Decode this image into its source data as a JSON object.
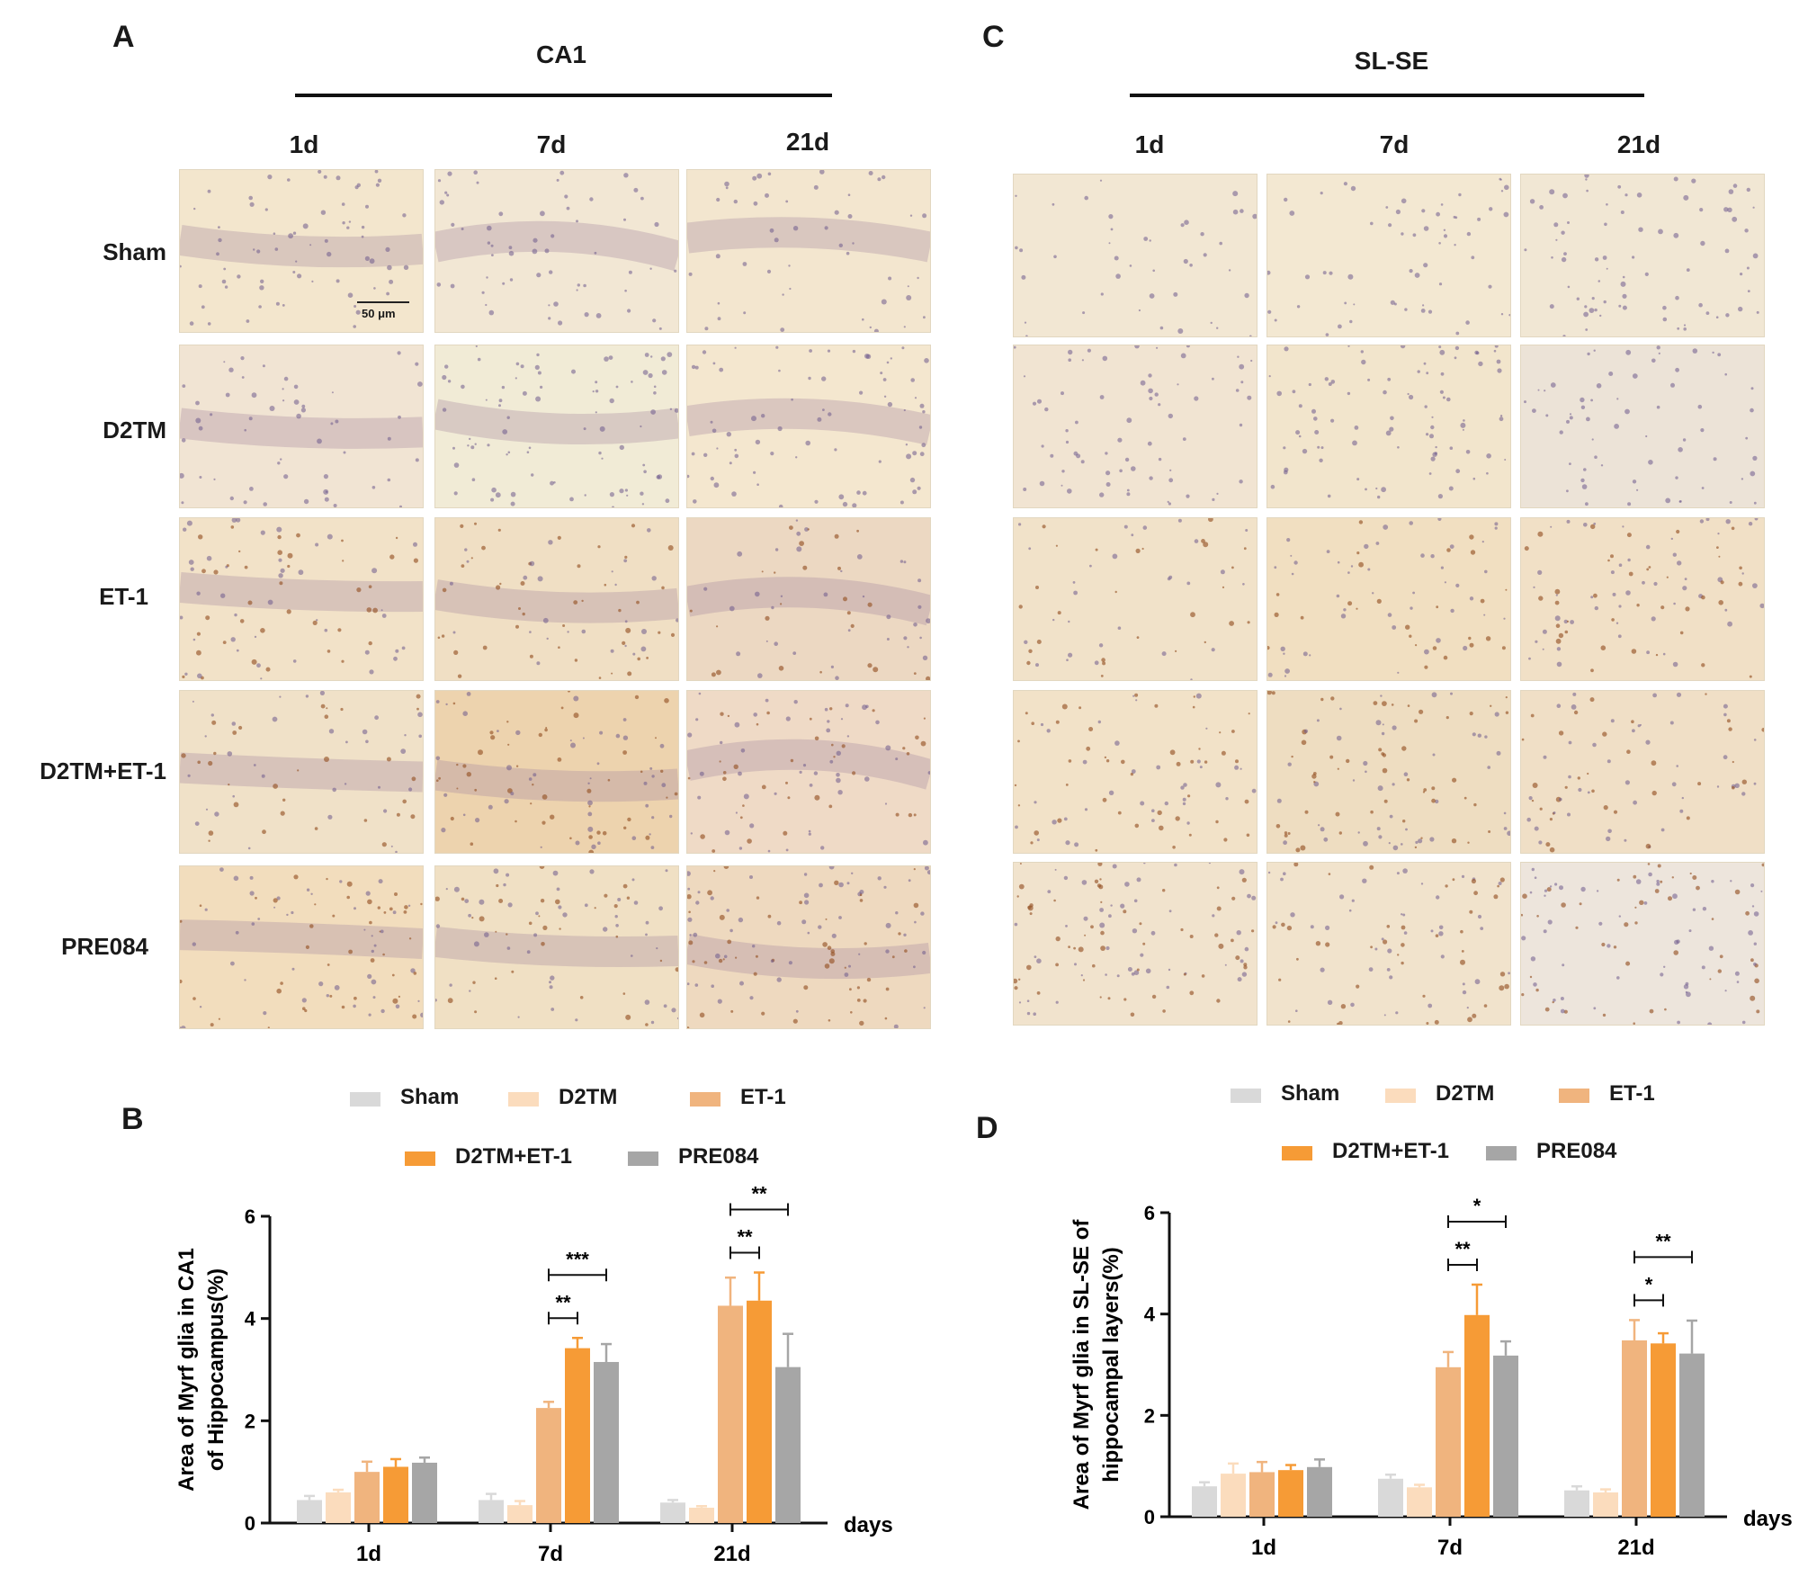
{
  "panel_labels": {
    "A": "A",
    "B": "B",
    "C": "C",
    "D": "D"
  },
  "micrographs": {
    "left": {
      "title": "CA1",
      "columns": [
        "1d",
        "7d",
        "21d"
      ]
    },
    "right": {
      "title": "SL-SE",
      "columns": [
        "1d",
        "7d",
        "21d"
      ]
    },
    "rows": [
      "Sham",
      "D2TM",
      "ET-1",
      "D2TM+ET-1",
      "PRE084"
    ],
    "scale_bar": "50 μm",
    "tile_tints": {
      "left": [
        [
          "#f3e6cd",
          "#f2e7d4",
          "#f3e6cf"
        ],
        [
          "#f1e4d3",
          "#f1ebd6",
          "#f4e7cf"
        ],
        [
          "#f2e2c8",
          "#f0dfc4",
          "#ecd8c2"
        ],
        [
          "#f0e1c8",
          "#edd3ae",
          "#efdac6"
        ],
        [
          "#f2ddbd",
          "#f0e0c4",
          "#eed9bf"
        ]
      ],
      "right": [
        [
          "#f2e7d3",
          "#f3e8d2",
          "#f1e7d4"
        ],
        [
          "#f1e4d2",
          "#f2e5cc",
          "#ece3d7"
        ],
        [
          "#f1e2c9",
          "#f1dfc1",
          "#f1e0c6"
        ],
        [
          "#f2e2c8",
          "#eeddc1",
          "#f0dfc6"
        ],
        [
          "#f1e3cd",
          "#f1e3cc",
          "#ede5dc"
        ]
      ]
    }
  },
  "chart_data": [
    {
      "type": "bar",
      "panel": "B",
      "title": "",
      "ylabel_line1": "Area of Myrf glia in  CA1",
      "ylabel_line2": "of Hippocampus(%)",
      "xlabel": "days",
      "ylim": [
        0,
        6
      ],
      "yticks": [
        0,
        2,
        4,
        6
      ],
      "categories": [
        "1d",
        "7d",
        "21d"
      ],
      "series": [
        {
          "name": "Sham",
          "color": "#d9d9d9",
          "values": [
            0.45,
            0.45,
            0.4
          ],
          "errors": [
            0.08,
            0.12,
            0.05
          ]
        },
        {
          "name": "D2TM",
          "color": "#fbdcbd",
          "values": [
            0.6,
            0.35,
            0.3
          ],
          "errors": [
            0.05,
            0.08,
            0.03
          ]
        },
        {
          "name": "ET-1",
          "color": "#f0b47e",
          "values": [
            1.0,
            2.25,
            4.25
          ],
          "errors": [
            0.2,
            0.12,
            0.55
          ]
        },
        {
          "name": "D2TM+ET-1",
          "color": "#f69b36",
          "values": [
            1.1,
            3.42,
            4.35
          ],
          "errors": [
            0.15,
            0.2,
            0.55
          ]
        },
        {
          "name": "PRE084",
          "color": "#a6a6a6",
          "values": [
            1.18,
            3.15,
            3.05
          ],
          "errors": [
            0.1,
            0.35,
            0.65
          ]
        }
      ],
      "significance": [
        {
          "category": "7d",
          "from_series": 2,
          "to_series": 3,
          "level": 1,
          "label": "**"
        },
        {
          "category": "7d",
          "from_series": 2,
          "to_series": 4,
          "level": 2,
          "label": "***"
        },
        {
          "category": "21d",
          "from_series": 2,
          "to_series": 3,
          "level": 1,
          "label": "**"
        },
        {
          "category": "21d",
          "from_series": 2,
          "to_series": 4,
          "level": 2,
          "label": "**"
        }
      ]
    },
    {
      "type": "bar",
      "panel": "D",
      "title": "",
      "ylabel_line1": "Area of Myrf glia in  SL-SE of",
      "ylabel_line2": "hippocampal layers(%)",
      "xlabel": "days",
      "ylim": [
        0,
        6
      ],
      "yticks": [
        0,
        2,
        4,
        6
      ],
      "categories": [
        "1d",
        "7d",
        "21d"
      ],
      "series": [
        {
          "name": "Sham",
          "color": "#d9d9d9",
          "values": [
            0.6,
            0.75,
            0.52
          ],
          "errors": [
            0.08,
            0.08,
            0.08
          ]
        },
        {
          "name": "D2TM",
          "color": "#fbdcbd",
          "values": [
            0.85,
            0.58,
            0.48
          ],
          "errors": [
            0.2,
            0.05,
            0.06
          ]
        },
        {
          "name": "ET-1",
          "color": "#f0b47e",
          "values": [
            0.88,
            2.95,
            3.48
          ],
          "errors": [
            0.2,
            0.3,
            0.4
          ]
        },
        {
          "name": "D2TM+ET-1",
          "color": "#f69b36",
          "values": [
            0.92,
            3.98,
            3.42
          ],
          "errors": [
            0.1,
            0.6,
            0.2
          ]
        },
        {
          "name": "PRE084",
          "color": "#a6a6a6",
          "values": [
            0.98,
            3.18,
            3.22
          ],
          "errors": [
            0.15,
            0.28,
            0.65
          ]
        }
      ],
      "significance": [
        {
          "category": "7d",
          "from_series": 2,
          "to_series": 3,
          "level": 1,
          "label": "**"
        },
        {
          "category": "7d",
          "from_series": 2,
          "to_series": 4,
          "level": 2,
          "label": "*"
        },
        {
          "category": "21d",
          "from_series": 2,
          "to_series": 3,
          "level": 1,
          "label": "*"
        },
        {
          "category": "21d",
          "from_series": 2,
          "to_series": 4,
          "level": 2,
          "label": "**"
        }
      ]
    }
  ]
}
